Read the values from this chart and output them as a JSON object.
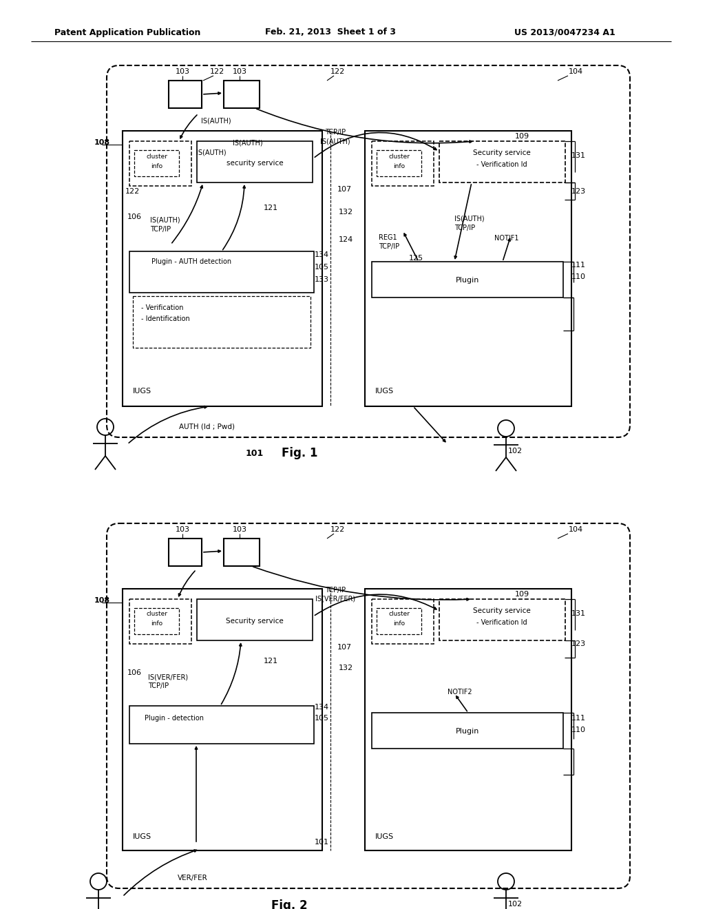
{
  "header_left": "Patent Application Publication",
  "header_center": "Feb. 21, 2013  Sheet 1 of 3",
  "header_right": "US 2013/0047234 A1",
  "bg_color": "#ffffff"
}
